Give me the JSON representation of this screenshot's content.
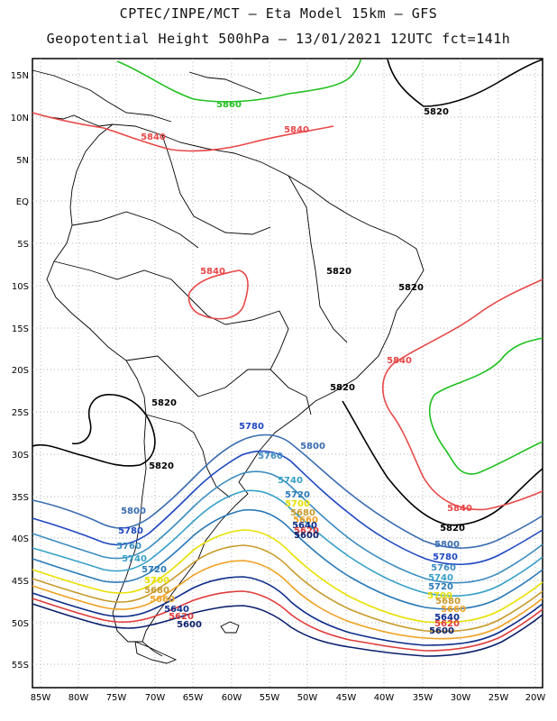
{
  "title_line1": "CPTEC/INPE/MCT –  Eta Model 15km – GFS",
  "title_line2": "Geopotential Height 500hPa – 13/01/2021 12UTC fct=141h",
  "lat_labels": [
    "15N",
    "10N",
    "5N",
    "EQ",
    "5S",
    "10S",
    "15S",
    "20S",
    "25S",
    "30S",
    "35S",
    "40S",
    "45S",
    "50S",
    "55S"
  ],
  "lon_labels": [
    "85W",
    "80W",
    "75W",
    "70W",
    "65W",
    "60W",
    "55W",
    "50W",
    "45W",
    "40W",
    "35W",
    "30W",
    "25W",
    "20W"
  ],
  "contour_colors": {
    "5600": "#0b1f6b",
    "5620": "#e03a3a",
    "5640": "#0c2c8a",
    "5660": "#f0a020",
    "5680": "#c89a2a",
    "5700": "#e8e000",
    "5720": "#2a7ab8",
    "5740": "#36a0c8",
    "5760": "#3c8cc0",
    "5780": "#1e48c0",
    "5800": "#3a6cb0",
    "5820": "#000000",
    "5840": "#e84848",
    "5860": "#20c020"
  },
  "contour_labels": [
    {
      "text": "5860",
      "color": "5860"
    },
    {
      "text": "5820",
      "color": "5820"
    },
    {
      "text": "5840",
      "color": "5840"
    },
    {
      "text": "5840",
      "color": "5840"
    },
    {
      "text": "5840",
      "color": "5840"
    },
    {
      "text": "5820",
      "color": "5820"
    },
    {
      "text": "5820",
      "color": "5820"
    },
    {
      "text": "5840",
      "color": "5840"
    },
    {
      "text": "5820",
      "color": "5820"
    },
    {
      "text": "5820",
      "color": "5820"
    },
    {
      "text": "5820",
      "color": "5820"
    },
    {
      "text": "5780",
      "color": "5780"
    },
    {
      "text": "5800",
      "color": "5800"
    },
    {
      "text": "5760",
      "color": "5760"
    },
    {
      "text": "5740",
      "color": "5740"
    },
    {
      "text": "5720",
      "color": "5720"
    },
    {
      "text": "5700",
      "color": "5700"
    },
    {
      "text": "5680",
      "color": "5680"
    },
    {
      "text": "5660",
      "color": "5660"
    },
    {
      "text": "5640",
      "color": "5640"
    },
    {
      "text": "5620",
      "color": "5620"
    },
    {
      "text": "5600",
      "color": "5600"
    },
    {
      "text": "5800",
      "color": "5800"
    },
    {
      "text": "5780",
      "color": "5780"
    },
    {
      "text": "5760",
      "color": "5760"
    },
    {
      "text": "5740",
      "color": "5740"
    },
    {
      "text": "5720",
      "color": "5720"
    },
    {
      "text": "5700",
      "color": "5700"
    },
    {
      "text": "5680",
      "color": "5680"
    },
    {
      "text": "5660",
      "color": "5660"
    },
    {
      "text": "5640",
      "color": "5640"
    },
    {
      "text": "5620",
      "color": "5620"
    },
    {
      "text": "5600",
      "color": "5600"
    },
    {
      "text": "5840",
      "color": "5840"
    },
    {
      "text": "5820",
      "color": "5820"
    },
    {
      "text": "5800",
      "color": "5800"
    },
    {
      "text": "5780",
      "color": "5780"
    },
    {
      "text": "5760",
      "color": "5760"
    },
    {
      "text": "5740",
      "color": "5740"
    },
    {
      "text": "5720",
      "color": "5720"
    },
    {
      "text": "5700",
      "color": "5700"
    },
    {
      "text": "5680",
      "color": "5680"
    },
    {
      "text": "5660",
      "color": "5660"
    },
    {
      "text": "5640",
      "color": "5640"
    },
    {
      "text": "5620",
      "color": "5620"
    },
    {
      "text": "5600",
      "color": "5600"
    }
  ]
}
